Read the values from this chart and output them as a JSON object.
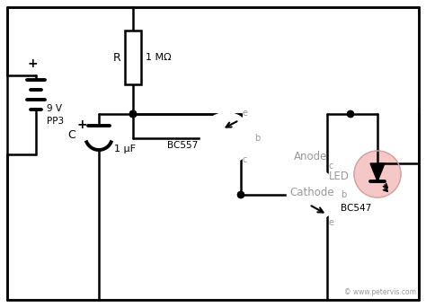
{
  "bg_color": "#ffffff",
  "line_color": "#000000",
  "gray_color": "#999999",
  "watermark": "© www.petervis.com",
  "battery_label": "9 V\nPP3",
  "resistor_label": "R",
  "resistor_value": "1 MΩ",
  "capacitor_label": "C",
  "capacitor_value": "1 μF",
  "transistor1_label": "BC557",
  "transistor2_label": "BC547",
  "led_label": "LED",
  "anode_label": "Anode",
  "cathode_label": "Cathode",
  "border_lw": 1.5,
  "wire_lw": 1.8,
  "thick_lw": 2.8,
  "transistor_r": 28
}
